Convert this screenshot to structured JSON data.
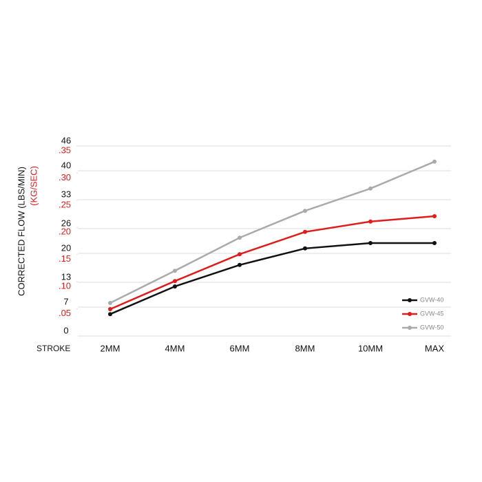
{
  "chart_data": {
    "type": "line",
    "y_label": "CORRECTED FLOW (LBS/MIN)",
    "y2_label": "(KG/SEC)",
    "x_label": "STROKE",
    "categories": [
      "2MM",
      "4MM",
      "6MM",
      "8MM",
      "10MM",
      "MAX"
    ],
    "ylim": [
      0,
      46
    ],
    "yticks": [
      0,
      7,
      13,
      20,
      26,
      33,
      40,
      46
    ],
    "y2lim": [
      0,
      0.35
    ],
    "y2ticks": [
      {
        "value": 0.05,
        "label": ".05"
      },
      {
        "value": 0.1,
        "label": ".10"
      },
      {
        "value": 0.15,
        "label": ".15"
      },
      {
        "value": 0.2,
        "label": ".20"
      },
      {
        "value": 0.25,
        "label": ".25"
      },
      {
        "value": 0.3,
        "label": ".30"
      },
      {
        "value": 0.35,
        "label": ".35"
      }
    ],
    "y2_color": "#e01b1b",
    "grid": true,
    "legend": "lower right",
    "series": [
      {
        "name": "GVW-40",
        "color": "#111111",
        "values": [
          5.3,
          12.0,
          17.2,
          21.2,
          22.5,
          22.5
        ]
      },
      {
        "name": "GVW-45",
        "color": "#e01b1b",
        "values": [
          6.5,
          13.3,
          19.8,
          25.2,
          27.7,
          29.0
        ]
      },
      {
        "name": "GVW-50",
        "color": "#aaaaaa",
        "values": [
          8.0,
          15.8,
          23.8,
          30.3,
          35.7,
          42.2
        ]
      }
    ]
  }
}
